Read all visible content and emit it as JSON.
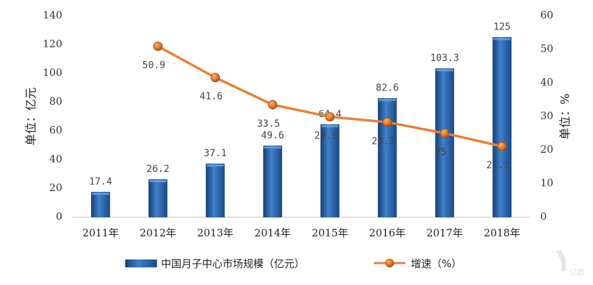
{
  "chart_data": {
    "type": "bar",
    "categories": [
      "2011年",
      "2012年",
      "2013年",
      "2014年",
      "2015年",
      "2016年",
      "2017年",
      "2018年"
    ],
    "series": [
      {
        "name": "中国月子中心市场规模（亿元）",
        "type": "bar",
        "axis": "left",
        "values": [
          17.4,
          26.2,
          37.1,
          49.6,
          64.4,
          82.6,
          103.3,
          125
        ],
        "labels": [
          "17.4",
          "26.2",
          "37.1",
          "49.6",
          "64.4",
          "82.6",
          "103.3",
          "125"
        ],
        "color": "#2e6db5"
      },
      {
        "name": "增速（%）",
        "type": "line",
        "axis": "right",
        "values": [
          null,
          50.9,
          41.6,
          33.5,
          29.9,
          28.3,
          25,
          21.1
        ],
        "labels": [
          "",
          "50.9",
          "41.6",
          "33.5",
          "29.9",
          "28.3",
          "25",
          "21.1"
        ],
        "color": "#ed7d31"
      }
    ],
    "y_left": {
      "label": "单位：亿元",
      "min": 0,
      "max": 140,
      "ticks": [
        "0",
        "20",
        "40",
        "60",
        "80",
        "100",
        "120",
        "140"
      ]
    },
    "y_right": {
      "label": "单位：%",
      "min": 0,
      "max": 60,
      "ticks": [
        "0",
        "10",
        "20",
        "30",
        "40",
        "50",
        "60"
      ]
    },
    "grid": false,
    "legend_position": "bottom"
  },
  "watermark": "亿欧"
}
